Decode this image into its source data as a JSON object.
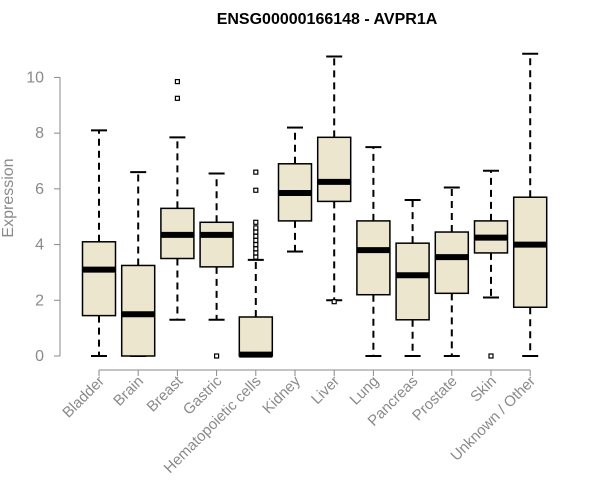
{
  "chart_data": {
    "type": "boxplot",
    "title": "ENSG00000166148 - AVPR1A",
    "ylabel": "Expression",
    "xlabel": "",
    "ylim": [
      0,
      11.2
    ],
    "yticks": [
      0,
      2,
      4,
      6,
      8,
      10
    ],
    "ytick_labels": [
      "0",
      "2",
      "4",
      "6",
      "8",
      "10"
    ],
    "box_fill": "#ede6cf",
    "line_color": "#000000",
    "axis_color": "#8a8a8a",
    "categories": [
      "Bladder",
      "Brain",
      "Breast",
      "Gastric",
      "Hematopoietic cells",
      "Kidney",
      "Liver",
      "Lung",
      "Pancreas",
      "Prostate",
      "Skin",
      "Unknown / Other"
    ],
    "boxes": [
      {
        "name": "Bladder",
        "whisker_low": 0.0,
        "q1": 1.45,
        "median": 3.1,
        "q3": 4.1,
        "whisker_high": 8.1,
        "outliers": []
      },
      {
        "name": "Brain",
        "whisker_low": 0.0,
        "q1": 0.0,
        "median": 1.5,
        "q3": 3.25,
        "whisker_high": 6.6,
        "outliers": []
      },
      {
        "name": "Breast",
        "whisker_low": 1.3,
        "q1": 3.5,
        "median": 4.35,
        "q3": 5.3,
        "whisker_high": 7.85,
        "outliers": [
          9.25,
          9.85
        ]
      },
      {
        "name": "Gastric",
        "whisker_low": 1.3,
        "q1": 3.2,
        "median": 4.35,
        "q3": 4.8,
        "whisker_high": 6.55,
        "outliers": [
          0.0
        ]
      },
      {
        "name": "Hematopoietic cells",
        "whisker_low": 0.0,
        "q1": 0.0,
        "median": 0.05,
        "q3": 1.4,
        "whisker_high": 3.45,
        "outliers": [
          3.55,
          3.7,
          3.85,
          4.0,
          4.15,
          4.3,
          4.45,
          4.6,
          4.8,
          5.95,
          6.6
        ]
      },
      {
        "name": "Kidney",
        "whisker_low": 3.75,
        "q1": 4.85,
        "median": 5.85,
        "q3": 6.9,
        "whisker_high": 8.2,
        "outliers": []
      },
      {
        "name": "Liver",
        "whisker_low": 2.0,
        "q1": 5.55,
        "median": 6.25,
        "q3": 7.85,
        "whisker_high": 10.75,
        "outliers": [
          1.95
        ]
      },
      {
        "name": "Lung",
        "whisker_low": 0.0,
        "q1": 2.2,
        "median": 3.8,
        "q3": 4.85,
        "whisker_high": 7.5,
        "outliers": []
      },
      {
        "name": "Pancreas",
        "whisker_low": 0.0,
        "q1": 1.3,
        "median": 2.9,
        "q3": 4.05,
        "whisker_high": 5.6,
        "outliers": []
      },
      {
        "name": "Prostate",
        "whisker_low": 0.0,
        "q1": 2.25,
        "median": 3.55,
        "q3": 4.45,
        "whisker_high": 6.05,
        "outliers": []
      },
      {
        "name": "Skin",
        "whisker_low": 2.1,
        "q1": 3.7,
        "median": 4.25,
        "q3": 4.85,
        "whisker_high": 6.65,
        "outliers": [
          0.0
        ]
      },
      {
        "name": "Unknown / Other",
        "whisker_low": 0.0,
        "q1": 1.75,
        "median": 4.0,
        "q3": 5.7,
        "whisker_high": 10.85,
        "outliers": []
      }
    ]
  }
}
